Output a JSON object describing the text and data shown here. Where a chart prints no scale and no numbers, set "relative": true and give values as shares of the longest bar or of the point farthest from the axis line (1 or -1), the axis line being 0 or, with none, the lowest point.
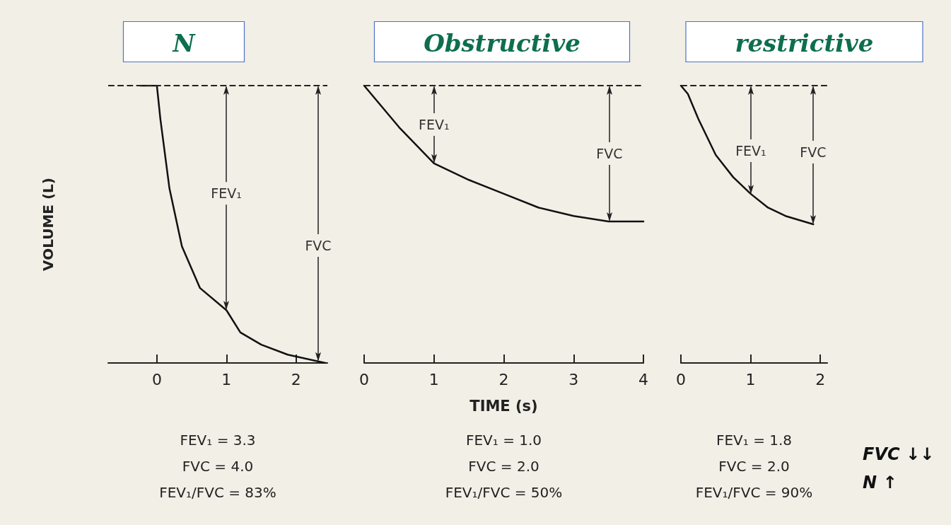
{
  "chart_data": [
    {
      "type": "line",
      "title": "N",
      "ylabel": "VOLUME (L)",
      "relative": true,
      "marker": "none",
      "line_style": "solid",
      "xlim": [
        -0.7,
        2.45
      ],
      "xticks": [
        0,
        1,
        2
      ],
      "series": [
        {
          "color": "#111111",
          "x": [
            -0.24,
            0,
            0.05,
            0.18,
            0.36,
            0.62,
            1,
            1.2,
            1.5,
            1.88,
            2.42
          ],
          "values": [
            1,
            1,
            0.88,
            0.63,
            0.42,
            0.27,
            0.19,
            0.11,
            0.066,
            0.03,
            0
          ]
        }
      ],
      "ref_lines": [
        {
          "axis": "y",
          "value": 1,
          "line_style": "dashed",
          "color": "#222222"
        }
      ],
      "annotations": [
        "FEV₁",
        "FVC",
        "FEV₁ = 3.3",
        "FVC = 4.0",
        "FEV₁/FVC = 83%"
      ]
    },
    {
      "type": "line",
      "title": "Obstructive",
      "xlabel": "TIME (s)",
      "relative": true,
      "marker": "none",
      "line_style": "solid",
      "xlim": [
        0,
        4
      ],
      "xticks": [
        0,
        1,
        2,
        3,
        4
      ],
      "series": [
        {
          "color": "#111111",
          "x": [
            0,
            0.5,
            1,
            1.5,
            2,
            2.5,
            3,
            3.5,
            4
          ],
          "values": [
            1,
            0.85,
            0.72,
            0.66,
            0.61,
            0.56,
            0.53,
            0.51,
            0.51
          ]
        }
      ],
      "ref_lines": [
        {
          "axis": "y",
          "value": 1,
          "line_style": "dashed",
          "color": "#222222"
        }
      ],
      "annotations": [
        "FEV₁",
        "FVC",
        "FEV₁ = 1.0",
        "FVC = 2.0",
        "FEV₁/FVC = 50%"
      ]
    },
    {
      "type": "line",
      "title": "restrictive",
      "relative": true,
      "marker": "none",
      "line_style": "solid",
      "xlim": [
        0,
        2.1
      ],
      "xticks": [
        0,
        1,
        2
      ],
      "series": [
        {
          "color": "#111111",
          "x": [
            0,
            0.1,
            0.25,
            0.5,
            0.75,
            1,
            1.25,
            1.5,
            1.9
          ],
          "values": [
            1,
            0.97,
            0.88,
            0.75,
            0.67,
            0.61,
            0.56,
            0.53,
            0.5
          ]
        }
      ],
      "ref_lines": [
        {
          "axis": "y",
          "value": 1,
          "line_style": "dashed",
          "color": "#222222"
        }
      ],
      "annotations": [
        "FEV₁",
        "FVC",
        "FEV₁ = 1.8",
        "FVC = 2.0",
        "FEV₁/FVC = 90%",
        "FVC ↓↓",
        "N ↑"
      ]
    }
  ]
}
